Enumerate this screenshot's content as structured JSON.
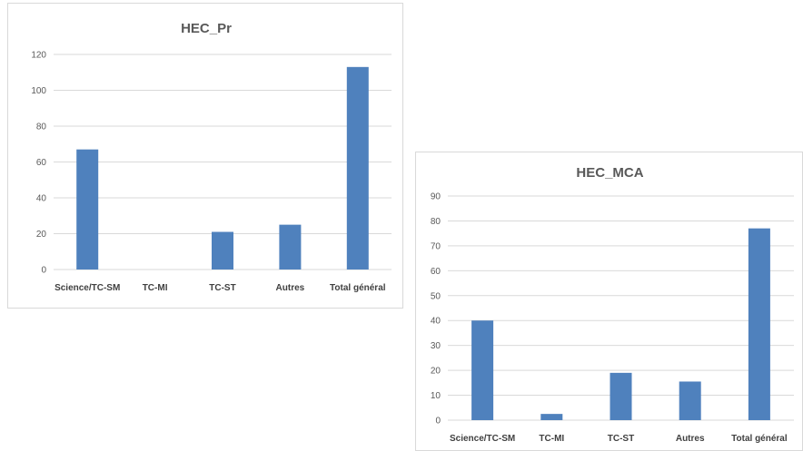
{
  "chart_data": [
    {
      "type": "bar",
      "title": "HEC_Pr",
      "categories": [
        "Science/TC-SM",
        "TC-MI",
        "TC-ST",
        "Autres",
        "Total général"
      ],
      "values": [
        67,
        0,
        21,
        25,
        113
      ],
      "ylim": [
        0,
        120
      ],
      "yticks": [
        0,
        20,
        40,
        60,
        80,
        100,
        120
      ],
      "grid": true,
      "legend": "none",
      "bar_color": "#4f81bd",
      "grid_color": "#d9d9d9"
    },
    {
      "type": "bar",
      "title": "HEC_MCA",
      "categories": [
        "Science/TC-SM",
        "TC-MI",
        "TC-ST",
        "Autres",
        "Total général"
      ],
      "values": [
        40,
        2.5,
        19,
        15.5,
        77
      ],
      "ylim": [
        0,
        90
      ],
      "yticks": [
        0,
        10,
        20,
        30,
        40,
        50,
        60,
        70,
        80,
        90
      ],
      "grid": true,
      "legend": "none",
      "bar_color": "#4f81bd",
      "grid_color": "#d9d9d9"
    }
  ]
}
